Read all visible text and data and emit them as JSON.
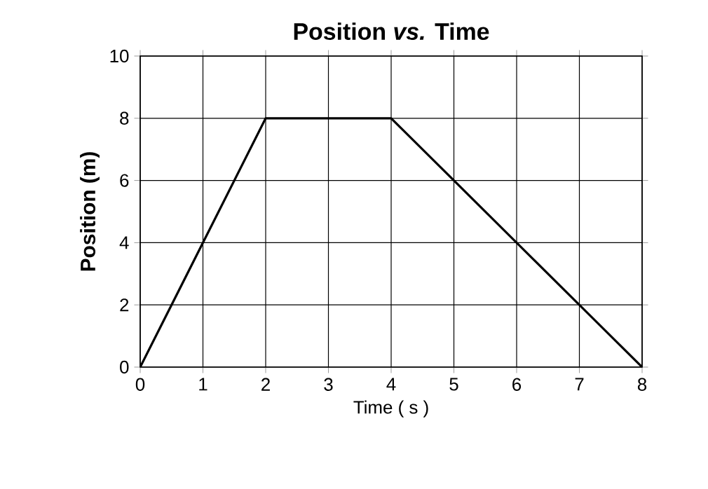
{
  "chart_data": {
    "type": "line",
    "title": "Position *vs.* Time",
    "xlabel": "Time ( s )",
    "ylabel": "Position (m)",
    "x": [
      0,
      2,
      4,
      8
    ],
    "series": [
      {
        "color": "#000000",
        "values": [
          0,
          8,
          8,
          0
        ]
      }
    ],
    "xlim": [
      0,
      8
    ],
    "ylim": [
      0,
      10
    ],
    "xticks": [
      0,
      1,
      2,
      3,
      4,
      5,
      6,
      7,
      8
    ],
    "yticks": [
      0,
      2,
      4,
      6,
      8,
      10
    ],
    "grid": true,
    "marker": "none",
    "line_style": "solid"
  }
}
